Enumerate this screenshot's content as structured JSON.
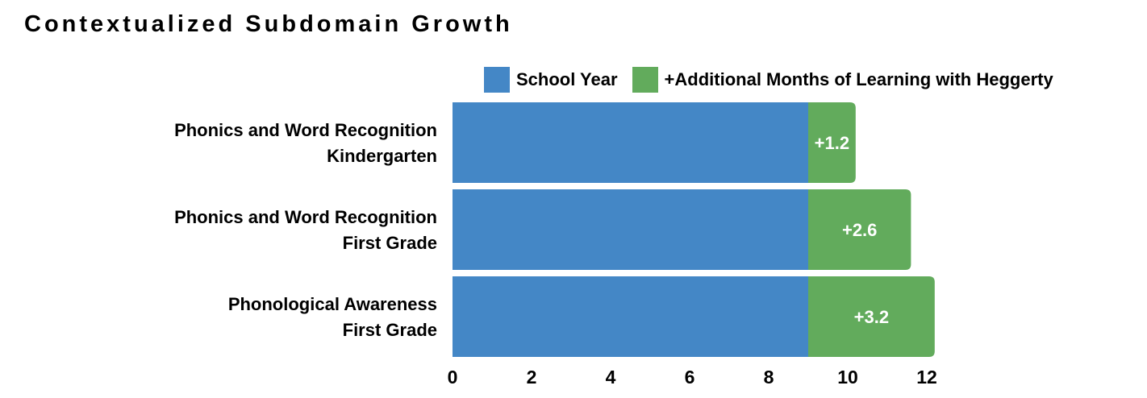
{
  "title": "Contextualized Subdomain Growth",
  "legend": [
    {
      "label": "School Year",
      "color": "#4487c6"
    },
    {
      "label": "+Additional Months of Learning with Heggerty",
      "color": "#62ab5c"
    }
  ],
  "chart_data": {
    "type": "bar",
    "orientation": "horizontal",
    "stacked": true,
    "title": "Contextualized Subdomain Growth",
    "categories": [
      [
        "Phonics and Word Recognition",
        "Kindergarten"
      ],
      [
        "Phonics and Word Recognition",
        "First Grade"
      ],
      [
        "Phonological Awareness",
        "First Grade"
      ]
    ],
    "series": [
      {
        "name": "School Year",
        "color": "#4487c6",
        "values": [
          9,
          9,
          9
        ]
      },
      {
        "name": "+Additional Months of Learning with Heggerty",
        "color": "#62ab5c",
        "values": [
          1.2,
          2.6,
          3.2
        ]
      }
    ],
    "data_labels": [
      "+1.2",
      "+2.6",
      "+3.2"
    ],
    "xlim": [
      0,
      12
    ],
    "xticks": [
      0,
      2,
      4,
      6,
      8,
      10,
      12
    ],
    "xlabel": "",
    "ylabel": "",
    "grid": false,
    "legend_position": "top-right"
  }
}
